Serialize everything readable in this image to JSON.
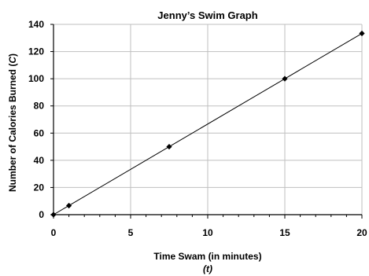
{
  "chart_data": {
    "type": "line",
    "title": "Jenny’s Swim Graph",
    "xlabel": "Time Swam (in minutes)",
    "xlabel_var": "(t)",
    "ylabel": "Number of Calories Burned (",
    "ylabel_var": "C",
    "ylabel_close": ")",
    "xlim": [
      0,
      20
    ],
    "ylim": [
      0,
      140
    ],
    "xticks": [
      0,
      5,
      10,
      15,
      20
    ],
    "yticks": [
      0,
      20,
      40,
      60,
      80,
      100,
      120,
      140
    ],
    "grid": true,
    "legend": "none",
    "line_color": "#000000",
    "grid_color": "#bfbfbf",
    "series": [
      {
        "points": [
          {
            "x": 0,
            "y": 0
          },
          {
            "x": 1,
            "y": 6.67
          },
          {
            "x": 7.5,
            "y": 50
          },
          {
            "x": 15,
            "y": 100
          },
          {
            "x": 20,
            "y": 133.33
          }
        ]
      }
    ]
  }
}
